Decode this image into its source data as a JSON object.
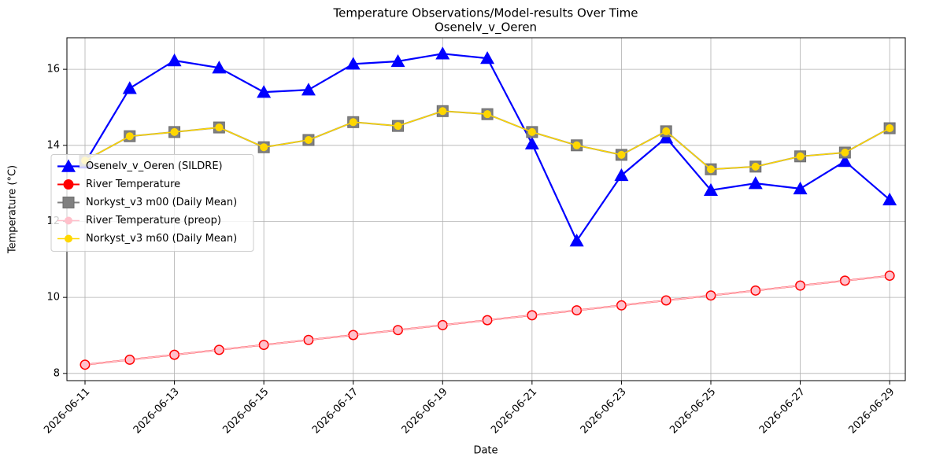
{
  "chart_data": {
    "type": "line",
    "title": "Temperature Observations/Model-results Over Time",
    "subtitle": "Osenelv_v_Oeren",
    "xlabel": "Date",
    "ylabel": "Temperature (°C)",
    "x": [
      "2026-06-11",
      "2026-06-12",
      "2026-06-13",
      "2026-06-14",
      "2026-06-15",
      "2026-06-16",
      "2026-06-17",
      "2026-06-18",
      "2026-06-19",
      "2026-06-20",
      "2026-06-21",
      "2026-06-22",
      "2026-06-23",
      "2026-06-24",
      "2026-06-25",
      "2026-06-26",
      "2026-06-27",
      "2026-06-28",
      "2026-06-29"
    ],
    "xlim": [
      "2026-06-11",
      "2026-06-29"
    ],
    "xticks": [
      "2026-06-11",
      "2026-06-13",
      "2026-06-15",
      "2026-06-17",
      "2026-06-19",
      "2026-06-21",
      "2026-06-23",
      "2026-06-25",
      "2026-06-27",
      "2026-06-29"
    ],
    "ylim": [
      7.81,
      16.83
    ],
    "yticks": [
      8,
      10,
      12,
      14,
      16
    ],
    "grid": true,
    "legend": "center left",
    "series": [
      {
        "name": "Osenelv_v_Oeren (SILDRE)",
        "color": "#0000ff",
        "marker": "triangle",
        "values": [
          13.54,
          15.5,
          16.23,
          16.04,
          15.4,
          15.46,
          16.14,
          16.21,
          16.41,
          16.29,
          14.04,
          11.49,
          13.21,
          14.2,
          12.82,
          13.0,
          12.86,
          13.58,
          12.57
        ]
      },
      {
        "name": "River Temperature",
        "color": "#ff0000",
        "marker": "circle",
        "values": [
          8.23,
          8.36,
          8.49,
          8.62,
          8.75,
          8.88,
          9.01,
          9.14,
          9.27,
          9.4,
          9.53,
          9.66,
          9.79,
          9.92,
          10.05,
          10.18,
          10.31,
          10.44,
          10.57
        ]
      },
      {
        "name": "Norkyst_v3 m00 (Daily Mean)",
        "color": "#808080",
        "marker": "square",
        "values": [
          13.6,
          14.24,
          14.35,
          14.47,
          13.95,
          14.14,
          14.61,
          14.51,
          14.9,
          14.82,
          14.35,
          14.0,
          13.75,
          14.37,
          13.37,
          13.44,
          13.71,
          13.81,
          14.45
        ]
      },
      {
        "name": "River Temperature (preop)",
        "color": "#ffc0cb",
        "marker": "circle",
        "values": [
          8.23,
          8.36,
          8.49,
          8.62,
          8.75,
          8.88,
          9.01,
          9.14,
          9.27,
          9.4,
          9.53,
          9.66,
          9.79,
          9.92,
          10.05,
          10.18,
          10.31,
          10.44,
          10.57
        ]
      },
      {
        "name": "Norkyst_v3 m60 (Daily Mean)",
        "color": "#ffd700",
        "marker": "circle",
        "values": [
          13.6,
          14.24,
          14.35,
          14.47,
          13.95,
          14.14,
          14.61,
          14.51,
          14.9,
          14.82,
          14.35,
          14.0,
          13.75,
          14.37,
          13.37,
          13.44,
          13.71,
          13.81,
          14.45
        ]
      }
    ]
  }
}
